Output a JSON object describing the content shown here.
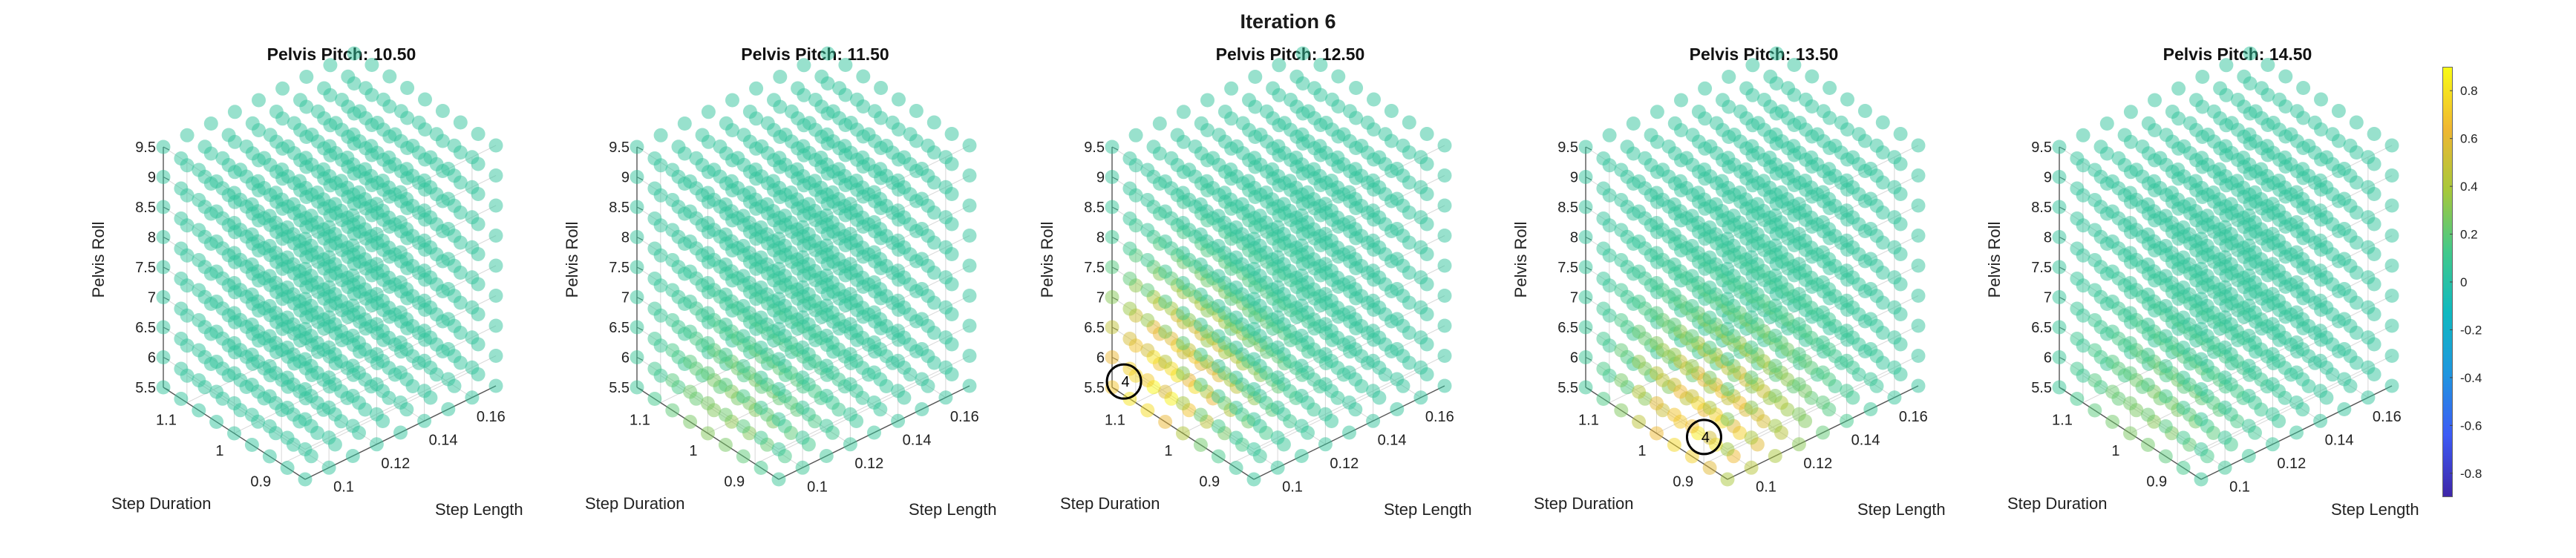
{
  "figure": {
    "title": "Iteration 6"
  },
  "colors": {
    "marker_base": "#5ed1cc",
    "grid": "#d8d8d8",
    "axis": "#555555",
    "colormap": [
      "#3e26a8",
      "#3d5bf5",
      "#1f96df",
      "#0fb9c0",
      "#42c98b",
      "#a7c83b",
      "#f0b732",
      "#f9fb14"
    ]
  },
  "chart_data": [
    {
      "type": "scatter3d",
      "title": "Pelvis Pitch: 10.50",
      "xlabel": "Step Length",
      "ylabel": "Step Duration",
      "zlabel": "Pelvis Roll",
      "xticks": [
        0.1,
        0.12,
        0.14,
        0.16
      ],
      "yticks": [
        0.9,
        1,
        1.1
      ],
      "zticks": [
        5.5,
        6,
        6.5,
        7,
        7.5,
        8,
        8.5,
        9,
        9.5
      ],
      "xlim": [
        0.09,
        0.17
      ],
      "ylim": [
        0.85,
        1.15
      ],
      "zlim": [
        5.5,
        9.5
      ],
      "grid_points_per_axis": 9,
      "value_range": [
        -0.9,
        0.9
      ],
      "background_value": 0.05,
      "hotspots": [],
      "callouts": []
    },
    {
      "type": "scatter3d",
      "title": "Pelvis Pitch: 11.50",
      "xlabel": "Step Length",
      "ylabel": "Step Duration",
      "zlabel": "Pelvis Roll",
      "xticks": [
        0.1,
        0.12,
        0.14,
        0.16
      ],
      "yticks": [
        0.9,
        1,
        1.1
      ],
      "zticks": [
        5.5,
        6,
        6.5,
        7,
        7.5,
        8,
        8.5,
        9,
        9.5
      ],
      "xlim": [
        0.09,
        0.17
      ],
      "ylim": [
        0.85,
        1.15
      ],
      "zlim": [
        5.5,
        9.5
      ],
      "grid_points_per_axis": 9,
      "value_range": [
        -0.9,
        0.9
      ],
      "background_value": 0.05,
      "hotspots": [
        {
          "x": 0.1,
          "y": 1.0,
          "z": 5.5,
          "peak": 0.32,
          "spread": 0.5
        }
      ],
      "callouts": []
    },
    {
      "type": "scatter3d",
      "title": "Pelvis Pitch: 12.50",
      "xlabel": "Step Length",
      "ylabel": "Step Duration",
      "zlabel": "Pelvis Roll",
      "xticks": [
        0.1,
        0.12,
        0.14,
        0.16
      ],
      "yticks": [
        0.9,
        1,
        1.1
      ],
      "zticks": [
        5.5,
        6,
        6.5,
        7,
        7.5,
        8,
        8.5,
        9,
        9.5
      ],
      "xlim": [
        0.09,
        0.17
      ],
      "ylim": [
        0.85,
        1.15
      ],
      "zlim": [
        5.5,
        9.5
      ],
      "grid_points_per_axis": 9,
      "value_range": [
        -0.9,
        0.9
      ],
      "background_value": 0.05,
      "hotspots": [
        {
          "x": 0.1,
          "y": 1.1,
          "z": 5.5,
          "peak": 0.9,
          "spread": 0.55
        }
      ],
      "callouts": [
        {
          "label": "4",
          "x": 0.095,
          "y": 1.15,
          "z": 5.5
        }
      ]
    },
    {
      "type": "scatter3d",
      "title": "Pelvis Pitch: 13.50",
      "xlabel": "Step Length",
      "ylabel": "Step Duration",
      "zlabel": "Pelvis Roll",
      "xticks": [
        0.1,
        0.12,
        0.14,
        0.16
      ],
      "yticks": [
        0.9,
        1,
        1.1
      ],
      "zticks": [
        5.5,
        6,
        6.5,
        7,
        7.5,
        8,
        8.5,
        9,
        9.5
      ],
      "xlim": [
        0.09,
        0.17
      ],
      "ylim": [
        0.85,
        1.15
      ],
      "zlim": [
        5.5,
        9.5
      ],
      "grid_points_per_axis": 9,
      "value_range": [
        -0.9,
        0.9
      ],
      "background_value": 0.05,
      "hotspots": [
        {
          "x": 0.1,
          "y": 0.95,
          "z": 5.5,
          "peak": 0.85,
          "spread": 0.55
        }
      ],
      "callouts": [
        {
          "label": "4",
          "x": 0.1,
          "y": 0.95,
          "z": 5.5
        }
      ]
    },
    {
      "type": "scatter3d",
      "title": "Pelvis Pitch: 14.50",
      "xlabel": "Step Length",
      "ylabel": "Step Duration",
      "zlabel": "Pelvis Roll",
      "xticks": [
        0.1,
        0.12,
        0.14,
        0.16
      ],
      "yticks": [
        0.9,
        1,
        1.1
      ],
      "zticks": [
        5.5,
        6,
        6.5,
        7,
        7.5,
        8,
        8.5,
        9,
        9.5
      ],
      "xlim": [
        0.09,
        0.17
      ],
      "ylim": [
        0.85,
        1.15
      ],
      "zlim": [
        5.5,
        9.5
      ],
      "grid_points_per_axis": 9,
      "value_range": [
        -0.9,
        0.9
      ],
      "background_value": 0.05,
      "hotspots": [
        {
          "x": 0.1,
          "y": 1.0,
          "z": 5.5,
          "peak": 0.3,
          "spread": 0.5
        }
      ],
      "callouts": []
    }
  ],
  "colorbar": {
    "ticks": [
      0.8,
      0.6,
      0.4,
      0.2,
      0,
      -0.2,
      -0.4,
      -0.6,
      -0.8
    ],
    "tick_labels": [
      "0.8",
      "0.6",
      "0.4",
      "0.2",
      "0",
      "-0.2",
      "-0.4",
      "-0.6",
      "-0.8"
    ],
    "range": [
      -0.9,
      0.9
    ]
  }
}
